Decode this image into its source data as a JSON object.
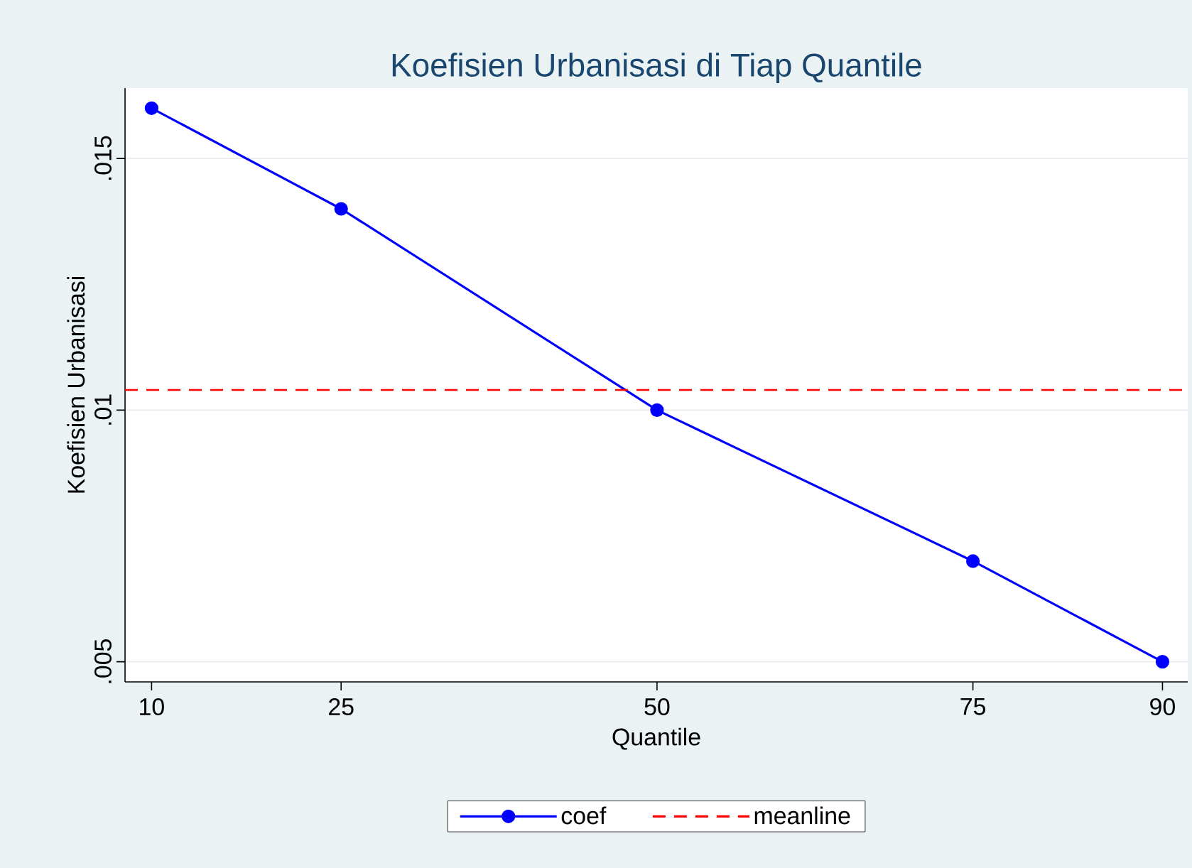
{
  "chart_data": {
    "type": "line",
    "title": "Koefisien Urbanisasi di Tiap Quantile",
    "xlabel": "Quantile",
    "ylabel": "Koefisien Urbanisasi",
    "x": [
      10,
      25,
      50,
      75,
      90
    ],
    "series": [
      {
        "name": "coef",
        "color": "#0000ff",
        "values": [
          0.016,
          0.014,
          0.01,
          0.007,
          0.005
        ]
      }
    ],
    "ref_lines": [
      {
        "axis": "y",
        "value": 0.0104,
        "label": "meanline",
        "color": "#ff0000",
        "line_style": "dashed"
      }
    ],
    "xlim": [
      7.9,
      92
    ],
    "ylim": [
      0.0046,
      0.0164
    ],
    "xticks": [
      10,
      25,
      50,
      75,
      90
    ],
    "yticks": [
      {
        "value": 0.005,
        "label": ".005"
      },
      {
        "value": 0.01,
        "label": ".01"
      },
      {
        "value": 0.015,
        "label": ".015"
      }
    ],
    "grid": "y",
    "legend": "bottom",
    "marker": "circle"
  }
}
